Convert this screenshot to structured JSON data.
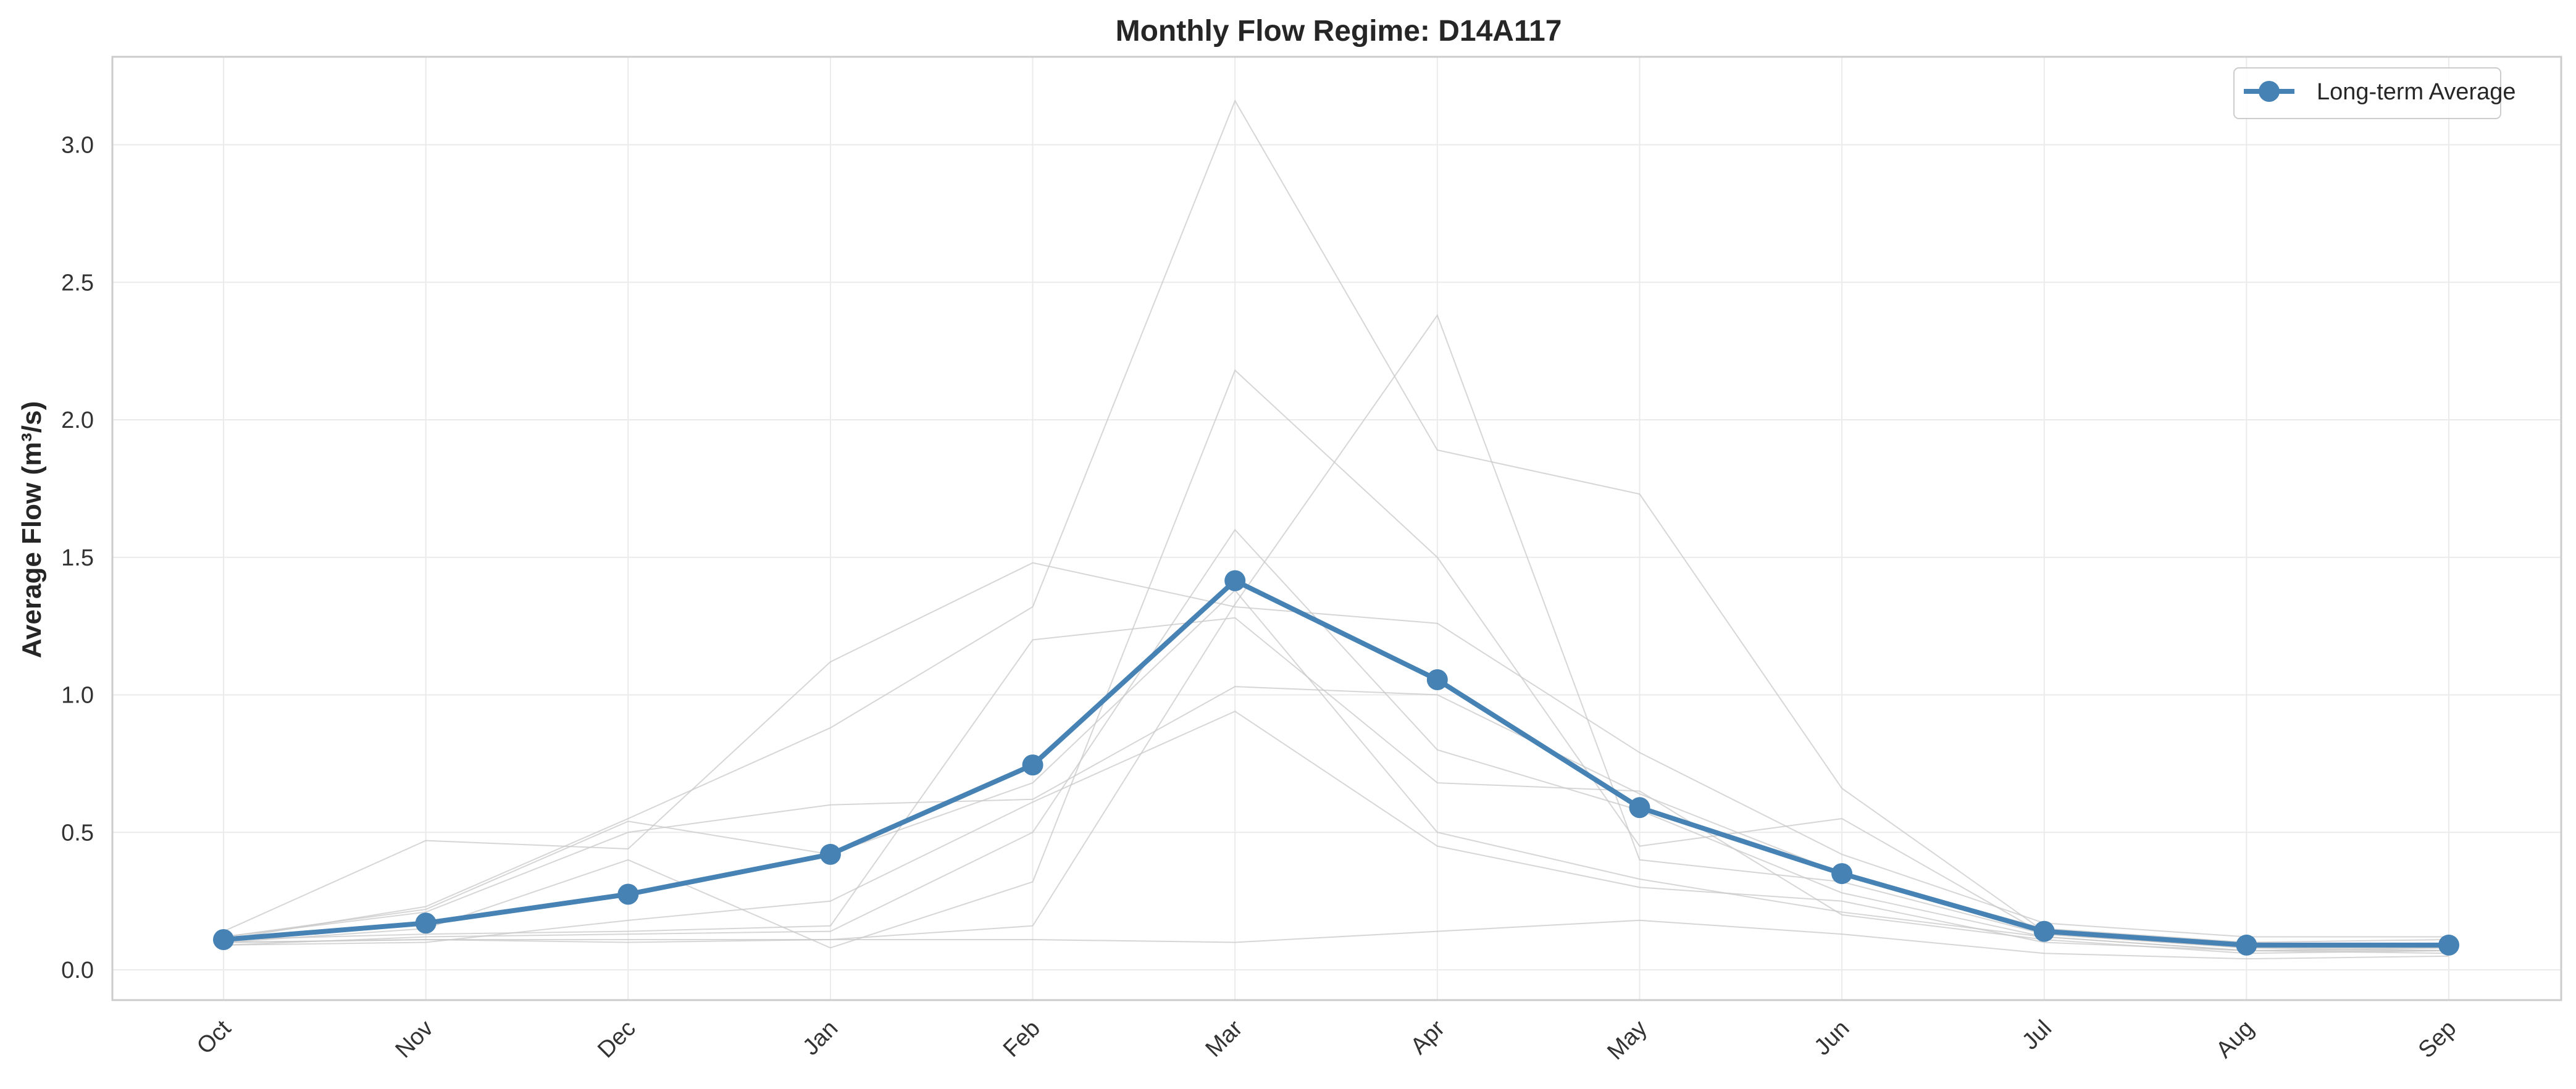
{
  "chart_data": {
    "type": "line",
    "title": "Monthly Flow Regime: D14A117",
    "xlabel": "",
    "ylabel": "Average Flow (m³/s)",
    "categories": [
      "Oct",
      "Nov",
      "Dec",
      "Jan",
      "Feb",
      "Mar",
      "Apr",
      "May",
      "Jun",
      "Jul",
      "Aug",
      "Sep"
    ],
    "ylim": [
      -0.11,
      3.32
    ],
    "yticks": [
      0.0,
      0.5,
      1.0,
      1.5,
      2.0,
      2.5,
      3.0
    ],
    "ytick_labels": [
      "0.0",
      "0.5",
      "1.0",
      "1.5",
      "2.0",
      "2.5",
      "3.0"
    ],
    "grid": true,
    "legend_position": "top-right",
    "main_series": {
      "name": "Long-term Average",
      "color": "#4682b4",
      "values": [
        0.11,
        0.17,
        0.275,
        0.42,
        0.745,
        1.415,
        1.055,
        0.59,
        0.35,
        0.14,
        0.09,
        0.09
      ]
    },
    "background_series_color": "#c8c8c8",
    "background_series": [
      {
        "values": [
          0.14,
          0.47,
          0.44,
          1.12,
          1.48,
          1.32,
          1.26,
          0.79,
          0.42,
          0.17,
          0.12,
          0.12
        ]
      },
      {
        "values": [
          0.11,
          0.23,
          0.55,
          0.88,
          1.32,
          3.16,
          1.89,
          1.73,
          0.66,
          0.14,
          0.09,
          0.09
        ]
      },
      {
        "values": [
          0.1,
          0.11,
          0.1,
          0.11,
          0.16,
          1.33,
          2.38,
          0.4,
          0.32,
          0.13,
          0.08,
          0.08
        ]
      },
      {
        "values": [
          0.12,
          0.21,
          0.5,
          0.6,
          0.62,
          1.03,
          1.0,
          0.64,
          0.35,
          0.15,
          0.1,
          0.11
        ]
      },
      {
        "values": [
          0.1,
          0.15,
          0.4,
          0.08,
          0.32,
          2.18,
          1.5,
          0.45,
          0.55,
          0.13,
          0.08,
          0.07
        ]
      },
      {
        "values": [
          0.09,
          0.12,
          0.13,
          0.14,
          0.5,
          1.6,
          0.8,
          0.58,
          0.28,
          0.12,
          0.07,
          0.07
        ]
      },
      {
        "values": [
          0.11,
          0.13,
          0.14,
          0.16,
          1.2,
          1.28,
          0.68,
          0.65,
          0.2,
          0.11,
          0.06,
          0.07
        ]
      },
      {
        "values": [
          0.09,
          0.1,
          0.18,
          0.25,
          0.61,
          0.94,
          0.45,
          0.3,
          0.25,
          0.1,
          0.07,
          0.06
        ]
      },
      {
        "values": [
          0.12,
          0.22,
          0.54,
          0.42,
          0.68,
          1.38,
          0.5,
          0.33,
          0.21,
          0.12,
          0.07,
          0.08
        ]
      },
      {
        "values": [
          0.1,
          0.11,
          0.11,
          0.11,
          0.11,
          0.1,
          0.14,
          0.18,
          0.13,
          0.06,
          0.04,
          0.05
        ]
      }
    ]
  }
}
